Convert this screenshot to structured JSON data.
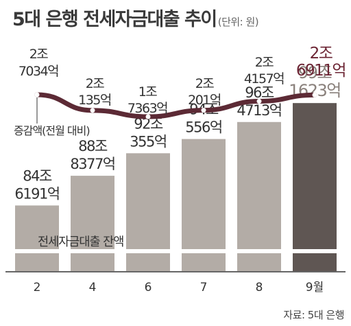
{
  "title": "5대 은행 전세자금대출 추이",
  "unit": "(단위: 원)",
  "source": "자료: 5대 은행",
  "chart_data": [
    {
      "type": "line",
      "series": [
        {
          "name": "증감액(전월 대비)",
          "values": [
            27034,
            20135,
            17363,
            20201,
            24157,
            26911
          ],
          "labels": [
            [
              "2조",
              "7034억"
            ],
            [
              "2조",
              "135억"
            ],
            [
              "1조",
              "7363억"
            ],
            [
              "2조",
              "201억"
            ],
            [
              "2조",
              "4157억"
            ],
            [
              "2조",
              "6911억"
            ]
          ]
        }
      ],
      "categories": [
        "2",
        "4",
        "6",
        "7",
        "8",
        "9월"
      ],
      "value_unit": "억원",
      "colors": {
        "line": "#5c2a35",
        "marker_fill": "#ffffff",
        "highlight_label": "#6b2433",
        "label": "#333333"
      }
    },
    {
      "type": "bar",
      "series": [
        {
          "name": "전세자금대출 잔액",
          "values": [
            846191,
            888377,
            920355,
            940556,
            964713,
            991623
          ],
          "labels": [
            [
              "84조",
              "6191억"
            ],
            [
              "88조",
              "8377억"
            ],
            [
              "92조",
              "355억"
            ],
            [
              "94조",
              "556억"
            ],
            [
              "96조",
              "4713억"
            ],
            [
              "99조",
              "1623억"
            ]
          ]
        }
      ],
      "categories": [
        "2",
        "4",
        "6",
        "7",
        "8",
        "9월"
      ],
      "value_unit": "억원",
      "colors": {
        "bar": "#b3aca6",
        "highlight_bar": "#5f5653",
        "label": "#333333",
        "highlight_label": "#8a817c",
        "band": "#ffffff",
        "axis": "#333333"
      }
    }
  ]
}
